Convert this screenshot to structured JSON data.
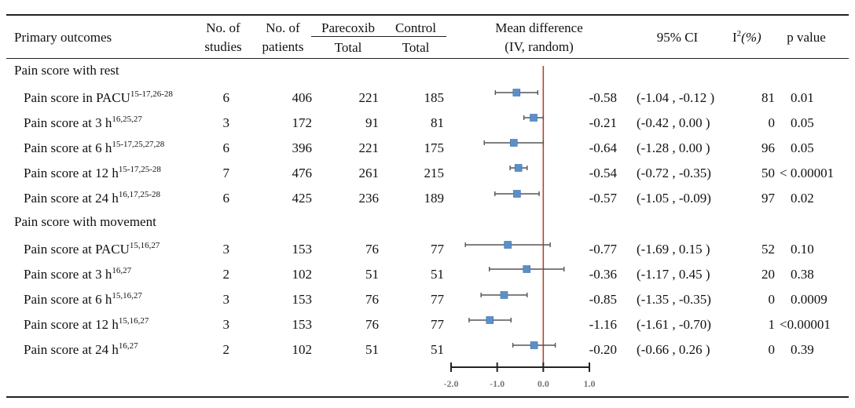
{
  "headers": {
    "primary": "Primary outcomes",
    "studies_1": "No. of",
    "studies_2": "studies",
    "patients_1": "No. of",
    "patients_2": "patients",
    "parecoxib": "Parecoxib",
    "control": "Control",
    "total_p": "Total",
    "total_c": "Total",
    "md_1": "Mean difference",
    "md_2": "(IV, random)",
    "ci": "95% CI",
    "i2_base": "I",
    "i2_sup": "2",
    "i2_unit": "(%)",
    "pval": "p value"
  },
  "sections": [
    "Pain score with rest",
    "Pain score with movement"
  ],
  "chart_data": {
    "type": "forest",
    "x_ticks": [
      "-2.0",
      "-1.0",
      "0.0",
      "1.0"
    ],
    "xlim": [
      -2.0,
      1.0
    ],
    "reference_line": 0.0,
    "rows": [
      {
        "label": "Pain score in PACU",
        "refs": "15-17,26-28",
        "studies": "6",
        "patients": "406",
        "p_total": "221",
        "c_total": "185",
        "md": "-0.58",
        "ci": "(-1.04 , -0.12 )",
        "i2": "81",
        "p": "0.01",
        "mean": -0.58,
        "lo": -1.04,
        "hi": -0.12
      },
      {
        "label": "Pain score at 3 h",
        "refs": "16,25,27",
        "studies": "3",
        "patients": "172",
        "p_total": "91",
        "c_total": "81",
        "md": "-0.21",
        "ci": "(-0.42 , 0.00 )",
        "i2": "0",
        "p": "0.05",
        "mean": -0.21,
        "lo": -0.42,
        "hi": 0.0
      },
      {
        "label": "Pain score at 6 h",
        "refs": "15-17,25,27,28",
        "studies": "6",
        "patients": "396",
        "p_total": "221",
        "c_total": "175",
        "md": "-0.64",
        "ci": "(-1.28 , 0.00 )",
        "i2": "96",
        "p": "0.05",
        "mean": -0.64,
        "lo": -1.28,
        "hi": 0.0
      },
      {
        "label": "Pain score at 12 h",
        "refs": "15-17,25-28",
        "studies": "7",
        "patients": "476",
        "p_total": "261",
        "c_total": "215",
        "md": "-0.54",
        "ci": "(-0.72 , -0.35)",
        "i2": "50",
        "p": "< 0.00001",
        "mean": -0.54,
        "lo": -0.72,
        "hi": -0.35
      },
      {
        "label": "Pain score at 24 h",
        "refs": "16,17,25-28",
        "studies": "6",
        "patients": "425",
        "p_total": "236",
        "c_total": "189",
        "md": "-0.57",
        "ci": "(-1.05 , -0.09)",
        "i2": "97",
        "p": "0.02",
        "mean": -0.57,
        "lo": -1.05,
        "hi": -0.09
      },
      {
        "label": "Pain score at PACU",
        "refs": "15,16,27",
        "studies": "3",
        "patients": "153",
        "p_total": "76",
        "c_total": "77",
        "md": "-0.77",
        "ci": "(-1.69 , 0.15 )",
        "i2": "52",
        "p": "0.10",
        "mean": -0.77,
        "lo": -1.69,
        "hi": 0.15
      },
      {
        "label": "Pain score at 3 h",
        "refs": "16,27",
        "studies": "2",
        "patients": "102",
        "p_total": "51",
        "c_total": "51",
        "md": "-0.36",
        "ci": "(-1.17 , 0.45 )",
        "i2": "20",
        "p": "0.38",
        "mean": -0.36,
        "lo": -1.17,
        "hi": 0.45
      },
      {
        "label": "Pain score at 6 h",
        "refs": "15,16,27",
        "studies": "3",
        "patients": "153",
        "p_total": "76",
        "c_total": "77",
        "md": "-0.85",
        "ci": "(-1.35 , -0.35)",
        "i2": "0",
        "p": "0.0009",
        "mean": -0.85,
        "lo": -1.35,
        "hi": -0.35
      },
      {
        "label": "Pain score at 12 h",
        "refs": "15,16,27",
        "studies": "3",
        "patients": "153",
        "p_total": "76",
        "c_total": "77",
        "md": "-1.16",
        "ci": "(-1.61 , -0.70)",
        "i2": "1",
        "p": "<0.00001",
        "mean": -1.16,
        "lo": -1.61,
        "hi": -0.7
      },
      {
        "label": "Pain score at 24 h",
        "refs": "16,27",
        "studies": "2",
        "patients": "102",
        "p_total": "51",
        "c_total": "51",
        "md": "-0.20",
        "ci": "(-0.66 , 0.26 )",
        "i2": "0",
        "p": "0.39",
        "mean": -0.2,
        "lo": -0.66,
        "hi": 0.26
      }
    ]
  },
  "colors": {
    "marker": "#5b8fc9",
    "marker_edge": "#3f6ea8",
    "whisker": "#555555",
    "reference": "#b5452e",
    "axis": "#222222"
  }
}
